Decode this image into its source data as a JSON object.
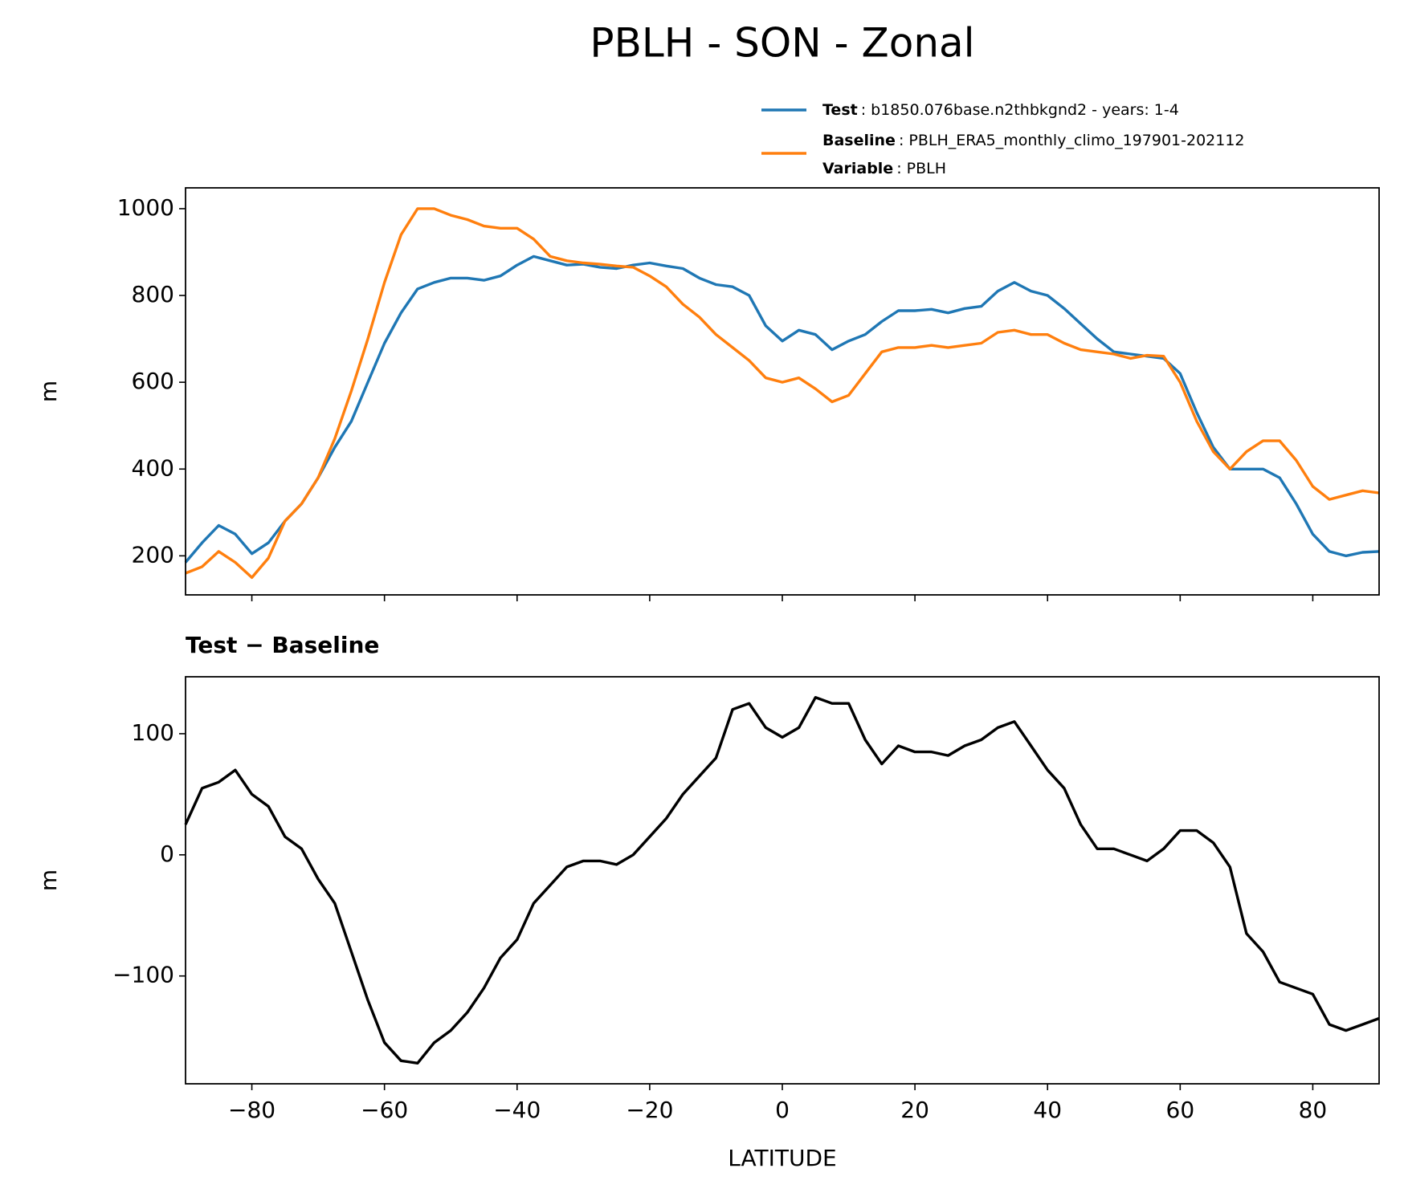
{
  "title": "PBLH - SON - Zonal",
  "chart_data": [
    {
      "type": "line",
      "ylabel": "m",
      "x": [
        -90,
        -87.5,
        -85,
        -82.5,
        -80,
        -77.5,
        -75,
        -72.5,
        -70,
        -67.5,
        -65,
        -62.5,
        -60,
        -57.5,
        -55,
        -52.5,
        -50,
        -47.5,
        -45,
        -42.5,
        -40,
        -37.5,
        -35,
        -32.5,
        -30,
        -27.5,
        -25,
        -22.5,
        -20,
        -17.5,
        -15,
        -12.5,
        -10,
        -7.5,
        -5,
        -2.5,
        0,
        2.5,
        5,
        7.5,
        10,
        12.5,
        15,
        17.5,
        20,
        22.5,
        25,
        27.5,
        30,
        32.5,
        35,
        37.5,
        40,
        42.5,
        45,
        47.5,
        50,
        52.5,
        55,
        57.5,
        60,
        62.5,
        65,
        67.5,
        70,
        72.5,
        75,
        77.5,
        80,
        82.5,
        85,
        87.5,
        90
      ],
      "series": [
        {
          "name": "Test",
          "description": ": b1850.076base.n2thbkgnd2 - years: 1-4",
          "color": "#1f77b4",
          "values": [
            185,
            230,
            270,
            250,
            205,
            230,
            280,
            320,
            380,
            450,
            510,
            600,
            690,
            760,
            815,
            830,
            840,
            840,
            835,
            845,
            870,
            890,
            880,
            870,
            872,
            865,
            862,
            870,
            875,
            868,
            862,
            840,
            825,
            820,
            800,
            730,
            695,
            720,
            710,
            675,
            695,
            710,
            740,
            765,
            765,
            768,
            760,
            770,
            775,
            810,
            830,
            810,
            800,
            770,
            735,
            700,
            670,
            665,
            660,
            655,
            620,
            530,
            450,
            400,
            400,
            400,
            380,
            320,
            250,
            210,
            200,
            208,
            210
          ]
        },
        {
          "name": "Baseline",
          "description": ": PBLH_ERA5_monthly_climo_197901-202112",
          "color": "#ff7f0e",
          "values": [
            160,
            175,
            210,
            185,
            150,
            195,
            280,
            320,
            380,
            470,
            580,
            700,
            830,
            940,
            1000,
            1000,
            985,
            975,
            960,
            955,
            955,
            930,
            890,
            880,
            875,
            872,
            868,
            865,
            845,
            820,
            780,
            750,
            710,
            680,
            650,
            610,
            600,
            610,
            585,
            555,
            570,
            620,
            670,
            680,
            680,
            685,
            680,
            685,
            690,
            715,
            720,
            710,
            710,
            690,
            675,
            670,
            665,
            655,
            662,
            660,
            600,
            510,
            440,
            400,
            440,
            465,
            465,
            420,
            360,
            330,
            340,
            350,
            345
          ]
        }
      ],
      "legend_note": {
        "name": "Variable",
        "description": ": PBLH"
      },
      "xlim": [
        -90,
        90
      ],
      "ylim": [
        110,
        1048
      ],
      "xticks": [
        -80,
        -60,
        -40,
        -20,
        0,
        20,
        40,
        60,
        80
      ],
      "yticks": [
        200,
        400,
        600,
        800,
        1000
      ]
    },
    {
      "type": "line",
      "title": "Test − Baseline",
      "ylabel": "m",
      "xlabel": "LATITUDE",
      "x": [
        -90,
        -87.5,
        -85,
        -82.5,
        -80,
        -77.5,
        -75,
        -72.5,
        -70,
        -67.5,
        -65,
        -62.5,
        -60,
        -57.5,
        -55,
        -52.5,
        -50,
        -47.5,
        -45,
        -42.5,
        -40,
        -37.5,
        -35,
        -32.5,
        -30,
        -27.5,
        -25,
        -22.5,
        -20,
        -17.5,
        -15,
        -12.5,
        -10,
        -7.5,
        -5,
        -2.5,
        0,
        2.5,
        5,
        7.5,
        10,
        12.5,
        15,
        17.5,
        20,
        22.5,
        25,
        27.5,
        30,
        32.5,
        35,
        37.5,
        40,
        42.5,
        45,
        47.5,
        50,
        52.5,
        55,
        57.5,
        60,
        62.5,
        65,
        67.5,
        70,
        72.5,
        75,
        77.5,
        80,
        82.5,
        85,
        87.5,
        90
      ],
      "series": [
        {
          "color": "#000000",
          "values": [
            25,
            55,
            60,
            70,
            50,
            40,
            15,
            5,
            -20,
            -40,
            -80,
            -120,
            -155,
            -170,
            -172,
            -155,
            -145,
            -130,
            -110,
            -85,
            -70,
            -40,
            -25,
            -10,
            -5,
            -5,
            -8,
            0,
            15,
            30,
            50,
            65,
            80,
            120,
            125,
            105,
            97,
            105,
            130,
            125,
            125,
            95,
            75,
            90,
            85,
            85,
            82,
            90,
            95,
            105,
            110,
            90,
            70,
            55,
            25,
            5,
            5,
            0,
            -5,
            5,
            20,
            20,
            10,
            -10,
            -65,
            -80,
            -105,
            -110,
            -115,
            -140,
            -145,
            -140,
            -135
          ]
        }
      ],
      "xlim": [
        -90,
        90
      ],
      "ylim": [
        -189,
        147
      ],
      "xticks": [
        {
          "value": -80,
          "label": "−80"
        },
        {
          "value": -60,
          "label": "−60"
        },
        {
          "value": -40,
          "label": "−40"
        },
        {
          "value": -20,
          "label": "−20"
        },
        0,
        20,
        40,
        60,
        80
      ],
      "yticks": [
        {
          "value": -100,
          "label": "−100"
        },
        0,
        100
      ]
    }
  ]
}
